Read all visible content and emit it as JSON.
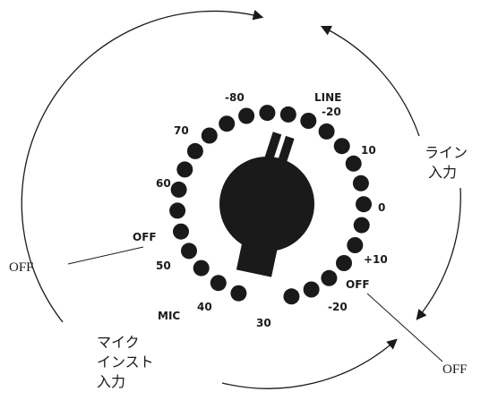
{
  "colors": {
    "ink": "#1a1a1a",
    "background": "#ffffff"
  },
  "dial": {
    "dot_count": 26,
    "dot_angles_deg": [
      -160,
      -146,
      -132,
      -119,
      -106,
      -93,
      -80,
      -67,
      -54,
      -41,
      -28,
      -15,
      -2,
      11,
      24,
      37,
      50,
      63,
      76,
      89,
      102,
      115,
      128,
      141,
      154,
      167
    ],
    "labels": {
      "line": "LINE",
      "m20_top": "-20",
      "p10_top": "10",
      "zero": "0",
      "p10_low": "+10",
      "off_right": "OFF",
      "m20_low": "-20",
      "thirty": "30",
      "forty": "40",
      "mic": "MIC",
      "fifty": "50",
      "off_left": "OFF",
      "sixty": "60",
      "seventy": "70",
      "m80": "-80"
    }
  },
  "callouts": {
    "off_outer_left": "OFF",
    "off_outer_right": "OFF",
    "line_input": [
      "ライン",
      "入力"
    ],
    "mic_inst_input": [
      "マイク",
      "インスト",
      "入力"
    ]
  }
}
